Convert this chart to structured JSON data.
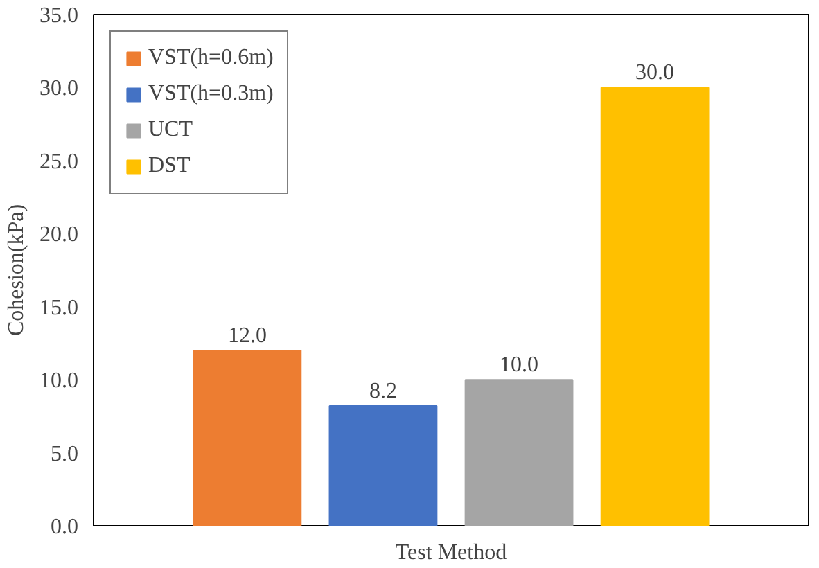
{
  "chart_data": {
    "type": "bar",
    "xlabel": "Test Method",
    "ylabel": "Cohesion(kPa)",
    "categories": [
      null
    ],
    "series": [
      {
        "name": "VST(h=0.6m)",
        "color": "#ed7d31",
        "values": [
          12.0
        ],
        "value_labels": [
          "12.0"
        ]
      },
      {
        "name": "VST(h=0.3m)",
        "color": "#4472c4",
        "values": [
          8.2
        ],
        "value_labels": [
          "8.2"
        ]
      },
      {
        "name": "UCT",
        "color": "#a5a5a5",
        "values": [
          10.0
        ],
        "value_labels": [
          "10.0"
        ]
      },
      {
        "name": "DST",
        "color": "#ffc000",
        "values": [
          30.0
        ],
        "value_labels": [
          "30.0"
        ]
      }
    ],
    "ylim": [
      0,
      35
    ],
    "yticks": [
      {
        "value": 0,
        "label": "0.0"
      },
      {
        "value": 5,
        "label": "5.0"
      },
      {
        "value": 10,
        "label": "10.0"
      },
      {
        "value": 15,
        "label": "15.0"
      },
      {
        "value": 20,
        "label": "20.0"
      },
      {
        "value": 25,
        "label": "25.0"
      },
      {
        "value": 30,
        "label": "30.0"
      },
      {
        "value": 35,
        "label": "35.0"
      }
    ],
    "grid": false,
    "legend": "top left"
  }
}
